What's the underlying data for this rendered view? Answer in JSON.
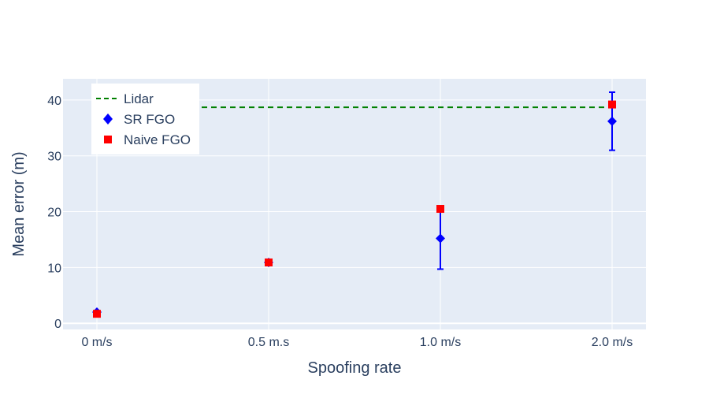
{
  "chart_data": {
    "type": "scatter",
    "title": "",
    "xlabel": "Spoofing rate",
    "ylabel": "Mean error (m)",
    "categories": [
      "0 m/s",
      "0.5 m.s",
      "1.0 m/s",
      "2.0 m/s"
    ],
    "yticks": [
      0,
      10,
      20,
      30,
      40
    ],
    "ylim": [
      -1.1,
      43.8
    ],
    "grid": true,
    "legend_position": "top-left",
    "plot_bg": "#e5ecf6",
    "series": [
      {
        "name": "Lidar",
        "kind": "dashed-line",
        "color": "#008000",
        "x_range": [
          0.5,
          3.0
        ],
        "y": 38.7
      },
      {
        "name": "SR FGO",
        "kind": "markers",
        "marker": "diamond",
        "color": "#0000ff",
        "values": [
          2.0,
          10.9,
          15.2,
          36.2
        ],
        "error": [
          0.0,
          0.0,
          5.5,
          5.2
        ]
      },
      {
        "name": "Naive FGO",
        "kind": "markers",
        "marker": "square",
        "color": "#ff0000",
        "values": [
          1.7,
          10.9,
          20.5,
          39.2
        ]
      }
    ]
  }
}
